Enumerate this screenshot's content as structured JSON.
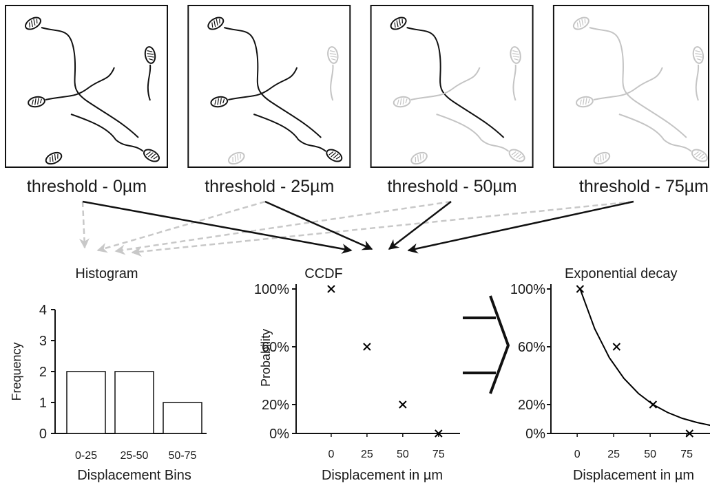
{
  "panels": [
    {
      "label": "threshold - 0µm"
    },
    {
      "label": "threshold - 25µm"
    },
    {
      "label": "threshold - 50µm"
    },
    {
      "label": "threshold - 75µm"
    }
  ],
  "chart_data": [
    {
      "type": "bar",
      "title": "Histogram",
      "x_label": "Displacement Bins",
      "y_label": "Frequency",
      "categories": [
        "0-25",
        "25-50",
        "50-75"
      ],
      "values": [
        2,
        2,
        1
      ],
      "color": "#ffffff",
      "ylim": [
        0,
        4
      ],
      "yticks": [
        0,
        1,
        2,
        3,
        4
      ]
    },
    {
      "type": "scatter",
      "title": "CCDF",
      "x_label": "Displacement in µm",
      "y_label": "Probability",
      "x": [
        0,
        25,
        50,
        75
      ],
      "values": [
        100,
        60,
        20,
        0
      ],
      "marker": "x",
      "color": "#000000",
      "xlim": [
        -24.5,
        90
      ],
      "xticks": [
        0,
        25,
        50,
        75
      ],
      "ylim": [
        0,
        100
      ],
      "yticks": [
        {
          "value": 0,
          "label": "0%"
        },
        {
          "value": 20,
          "label": "20%"
        },
        {
          "value": 60,
          "label": "60%"
        },
        {
          "value": 100,
          "label": "100%"
        }
      ]
    },
    {
      "type": "scatter",
      "title": "Exponential decay",
      "x_label": "Displacement in µm",
      "x": [
        2,
        27,
        52,
        77
      ],
      "values": [
        100,
        60,
        20,
        0
      ],
      "marker": "x",
      "color": "#000000",
      "fit": {
        "x": [
          2,
          12,
          22,
          32,
          42,
          52,
          62,
          72,
          82,
          92
        ],
        "values": [
          100,
          72.5,
          52.5,
          38.1,
          27.6,
          20,
          14.5,
          10.5,
          7.6,
          5.5
        ]
      },
      "xlim": [
        -18,
        91
      ],
      "xticks": [
        0,
        25,
        50,
        75
      ],
      "ylim": [
        0,
        100
      ],
      "yticks": [
        {
          "value": 0,
          "label": "0%"
        },
        {
          "value": 20,
          "label": "20%"
        },
        {
          "value": 60,
          "label": "60%"
        },
        {
          "value": 100,
          "label": "100%"
        }
      ]
    }
  ]
}
